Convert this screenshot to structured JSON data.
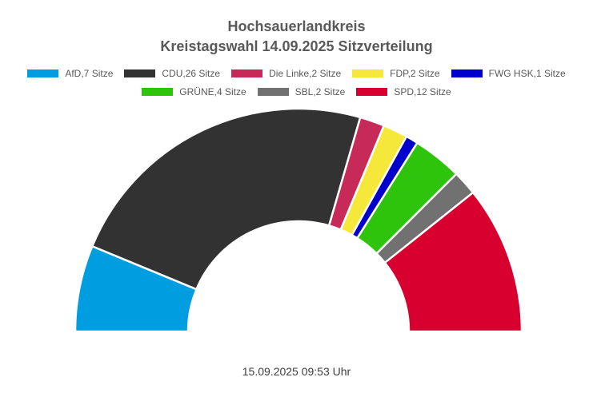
{
  "title": {
    "line1": "Hochsauerlandkreis",
    "line2": "Kreistagswahl 14.09.2025 Sitzverteilung"
  },
  "footer": {
    "timestamp": "15.09.2025 09:53 Uhr"
  },
  "chart_data": {
    "type": "pie",
    "variant": "half-donut",
    "title": "Hochsauerlandkreis Kreistagswahl 14.09.2025 Sitzverteilung",
    "total_seats": 56,
    "start_angle_deg": 180,
    "end_angle_deg": 0,
    "legend_position": "top",
    "series": [
      {
        "name": "AfD",
        "label": "AfD,7 Sitze",
        "seats": 7,
        "color": "#009EE0"
      },
      {
        "name": "CDU",
        "label": "CDU,26 Sitze",
        "seats": 26,
        "color": "#323232"
      },
      {
        "name": "Die Linke",
        "label": "Die Linke,2 Sitze",
        "seats": 2,
        "color": "#C72959"
      },
      {
        "name": "FDP",
        "label": "FDP,2 Sitze",
        "seats": 2,
        "color": "#F6E73B"
      },
      {
        "name": "FWG HSK",
        "label": "FWG HSK,1 Sitze",
        "seats": 1,
        "color": "#0000CD"
      },
      {
        "name": "GRÜNE",
        "label": "GRÜNE,4 Sitze",
        "seats": 4,
        "color": "#2FC40C"
      },
      {
        "name": "SBL",
        "label": "SBL,2 Sitze",
        "seats": 2,
        "color": "#717171"
      },
      {
        "name": "SPD",
        "label": "SPD,12 Sitze",
        "seats": 12,
        "color": "#D8002E"
      }
    ],
    "legend_rows": [
      [
        0,
        1,
        2,
        3,
        4
      ],
      [
        5,
        6,
        7
      ]
    ]
  }
}
